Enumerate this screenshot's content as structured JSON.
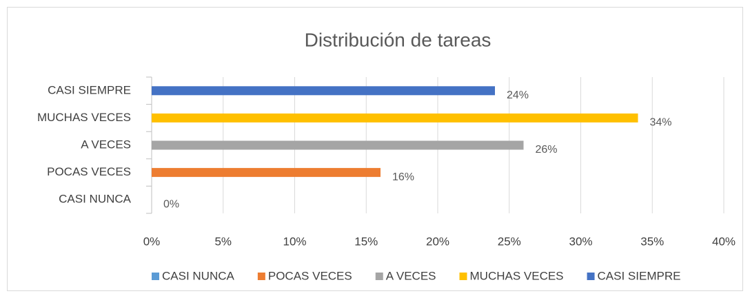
{
  "chart_data": {
    "type": "barh",
    "title": "Distribución de tareas",
    "categories": [
      "CASI NUNCA",
      "POCAS VECES",
      "A  VECES",
      "MUCHAS VECES",
      "CASI SIEMPRE"
    ],
    "series": [
      {
        "name": "CASI NUNCA",
        "color": "#5b9bd5",
        "values": [
          0,
          null,
          null,
          null,
          null
        ],
        "value_labels": [
          "0%",
          null,
          null,
          null,
          null
        ]
      },
      {
        "name": "POCAS VECES",
        "color": "#ed7d31",
        "values": [
          null,
          16,
          null,
          null,
          null
        ],
        "value_labels": [
          null,
          "16%",
          null,
          null,
          null
        ]
      },
      {
        "name": "A VECES",
        "color": "#a5a5a5",
        "values": [
          null,
          null,
          26,
          null,
          null
        ],
        "value_labels": [
          null,
          null,
          "26%",
          null,
          null
        ]
      },
      {
        "name": "MUCHAS VECES",
        "color": "#ffc000",
        "values": [
          null,
          null,
          null,
          34,
          null
        ],
        "value_labels": [
          null,
          null,
          null,
          "34%",
          null
        ]
      },
      {
        "name": "CASI SIEMPRE",
        "color": "#4472c4",
        "values": [
          null,
          null,
          null,
          null,
          24
        ],
        "value_labels": [
          null,
          null,
          null,
          null,
          "24%"
        ]
      }
    ],
    "xlim": [
      0,
      40
    ],
    "xticks": [
      {
        "value": 0,
        "label": "0%"
      },
      {
        "value": 5,
        "label": "5%"
      },
      {
        "value": 10,
        "label": "10%"
      },
      {
        "value": 15,
        "label": "15%"
      },
      {
        "value": 20,
        "label": "20%"
      },
      {
        "value": 25,
        "label": "25%"
      },
      {
        "value": 30,
        "label": "30%"
      },
      {
        "value": 35,
        "label": "35%"
      },
      {
        "value": 40,
        "label": "40%"
      }
    ],
    "grid": true,
    "legend": "bottom"
  }
}
